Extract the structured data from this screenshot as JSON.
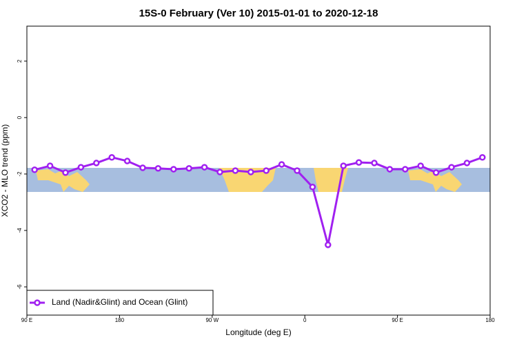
{
  "chart_data": {
    "type": "line",
    "title": "15S-0 February (Ver 10)   2015-01-01 to 2020-12-18",
    "x_label": "Longitude (deg E)",
    "y_label": "XCO2 - MLO trend (ppm)",
    "xlim": [
      90,
      540
    ],
    "ylim": [
      -7,
      3.24
    ],
    "xticks": [
      {
        "value": 90,
        "label": "90 E"
      },
      180,
      {
        "value": 270,
        "label": "90 W"
      },
      {
        "value": 360,
        "label": "0"
      },
      {
        "value": 450,
        "label": "90 E"
      },
      {
        "value": 540,
        "label": "180"
      }
    ],
    "yticks": [
      -6,
      -4,
      -2,
      0,
      2
    ],
    "legend": "bottom-left",
    "x": [
      97.5,
      112.5,
      127.5,
      142.5,
      157.5,
      172.5,
      187.5,
      202.5,
      217.5,
      232.5,
      247.5,
      262.5,
      277.5,
      292.5,
      307.5,
      322.5,
      337.5,
      352.5,
      367.5,
      382.5,
      397.5,
      412.5,
      427.5,
      442.5,
      457.5,
      472.5,
      487.5,
      502.5,
      517.5,
      532.5
    ],
    "series": [
      {
        "name": "Land (Nadir&Glint) and Ocean (Glint)",
        "color": "#a020f0",
        "values": [
          -1.85,
          -1.71,
          -1.95,
          -1.76,
          -1.61,
          -1.41,
          -1.54,
          -1.78,
          -1.8,
          -1.83,
          -1.8,
          -1.76,
          -1.93,
          -1.88,
          -1.93,
          -1.88,
          -1.66,
          -1.88,
          -2.46,
          -4.51,
          -1.71,
          -1.59,
          -1.61,
          -1.83,
          -1.83,
          -1.71,
          -1.95,
          -1.76,
          -1.61,
          -1.41
        ]
      }
    ]
  }
}
